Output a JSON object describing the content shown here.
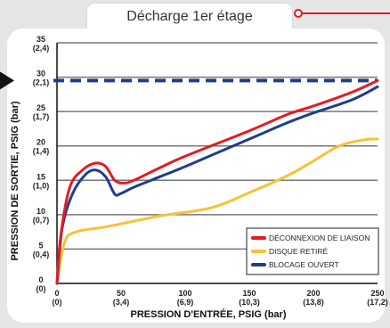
{
  "header": {
    "title": "Décharge 1er étage"
  },
  "colors": {
    "red": "#e31b23",
    "yellow": "#f7c236",
    "blue": "#1f3d8c",
    "dashed": "#1f3d8c"
  },
  "chart_data": {
    "type": "line",
    "xlabel": "PRESSION D'ENTRÉE, PSIG (bar)",
    "ylabel": "PRESSION DE SORTIE, PSIG (bar)",
    "xlim": [
      0,
      250
    ],
    "ylim": [
      0,
      35
    ],
    "x_ticks": [
      {
        "value": 0,
        "label": "0",
        "sub": "(0)"
      },
      {
        "value": 50,
        "label": "50",
        "sub": "(3,4)"
      },
      {
        "value": 100,
        "label": "100",
        "sub": "(6,9)"
      },
      {
        "value": 150,
        "label": "150",
        "sub": "(10,3)"
      },
      {
        "value": 200,
        "label": "200",
        "sub": "(13,8)"
      },
      {
        "value": 250,
        "label": "250",
        "sub": "(17,2)"
      }
    ],
    "y_ticks": [
      {
        "value": 0,
        "label": "0",
        "sub": "(0)"
      },
      {
        "value": 5,
        "label": "5",
        "sub": "(0,4)"
      },
      {
        "value": 10,
        "label": "10",
        "sub": "(0,7)"
      },
      {
        "value": 15,
        "label": "15",
        "sub": "(1,0)"
      },
      {
        "value": 20,
        "label": "20",
        "sub": "(1,4)"
      },
      {
        "value": 25,
        "label": "25",
        "sub": "(1,7)"
      },
      {
        "value": 30,
        "label": "30",
        "sub": "(2,1)"
      },
      {
        "value": 35,
        "label": "35",
        "sub": "(2,4)"
      }
    ],
    "reference_line": {
      "y": 29.5,
      "style": "dashed"
    },
    "series": [
      {
        "name": "DÉCONNEXION DE LIAISON",
        "color": "#e31b23",
        "points": [
          [
            0,
            0
          ],
          [
            3,
            7
          ],
          [
            10,
            14
          ],
          [
            20,
            16.5
          ],
          [
            30,
            17.5
          ],
          [
            38,
            17
          ],
          [
            45,
            15
          ],
          [
            52,
            14.6
          ],
          [
            60,
            15
          ],
          [
            80,
            16.8
          ],
          [
            100,
            18.5
          ],
          [
            150,
            22.2
          ],
          [
            180,
            24.6
          ],
          [
            200,
            25.8
          ],
          [
            230,
            27.8
          ],
          [
            250,
            29.5
          ]
        ]
      },
      {
        "name": "DISQUE RETIRÉ",
        "color": "#f7c236",
        "points": [
          [
            0,
            0
          ],
          [
            6,
            6
          ],
          [
            15,
            7.5
          ],
          [
            40,
            8.3
          ],
          [
            80,
            9.8
          ],
          [
            120,
            11
          ],
          [
            150,
            13.2
          ],
          [
            180,
            15.7
          ],
          [
            200,
            17.8
          ],
          [
            220,
            20
          ],
          [
            240,
            20.9
          ],
          [
            250,
            21
          ]
        ]
      },
      {
        "name": "BLOCAGE OUVERT",
        "color": "#1f3d8c",
        "points": [
          [
            0,
            0
          ],
          [
            4,
            8
          ],
          [
            12,
            13
          ],
          [
            22,
            15.8
          ],
          [
            30,
            16.5
          ],
          [
            38,
            15.5
          ],
          [
            45,
            13
          ],
          [
            50,
            13.1
          ],
          [
            60,
            14
          ],
          [
            80,
            15.5
          ],
          [
            100,
            17
          ],
          [
            150,
            21
          ],
          [
            180,
            23.4
          ],
          [
            200,
            24.8
          ],
          [
            230,
            26.7
          ],
          [
            250,
            28.6
          ]
        ]
      }
    ],
    "legend_position": "bottom-right"
  }
}
